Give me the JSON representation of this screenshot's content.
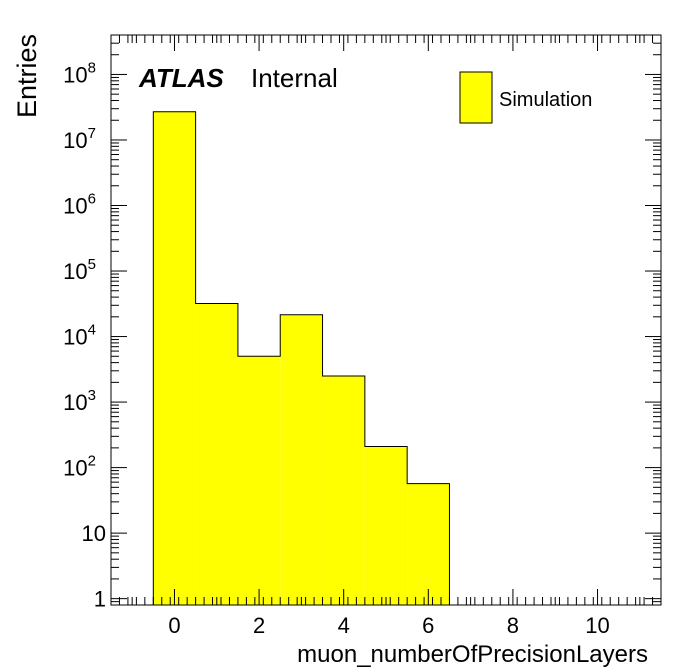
{
  "chart_data": {
    "type": "bar",
    "histogram": true,
    "xlabel": "muon_numberOfPrecisionLayers",
    "ylabel": "Entries",
    "xlim": [
      -1.5,
      11.5
    ],
    "ylim": [
      0.8,
      400000000
    ],
    "yscale": "log",
    "grid": false,
    "legend_position": "top-right",
    "bar_color": "#ffff00",
    "x_ticks": [
      0,
      2,
      4,
      6,
      8,
      10
    ],
    "x_tick_labels": [
      "0",
      "2",
      "4",
      "6",
      "8",
      "10"
    ],
    "y_ticks": [
      1,
      10,
      100,
      1000,
      10000,
      100000,
      1000000,
      10000000,
      100000000
    ],
    "y_tick_labels": [
      {
        "base": "1",
        "exp": ""
      },
      {
        "base": "10",
        "exp": ""
      },
      {
        "base": "10",
        "exp": "2"
      },
      {
        "base": "10",
        "exp": "3"
      },
      {
        "base": "10",
        "exp": "4"
      },
      {
        "base": "10",
        "exp": "5"
      },
      {
        "base": "10",
        "exp": "6"
      },
      {
        "base": "10",
        "exp": "7"
      },
      {
        "base": "10",
        "exp": "8"
      }
    ],
    "bins": [
      {
        "low": -0.5,
        "high": 0.5,
        "value": 27000000
      },
      {
        "low": 0.5,
        "high": 1.5,
        "value": 32000
      },
      {
        "low": 1.5,
        "high": 2.5,
        "value": 5000
      },
      {
        "low": 2.5,
        "high": 3.5,
        "value": 21500
      },
      {
        "low": 3.5,
        "high": 4.5,
        "value": 2500
      },
      {
        "low": 4.5,
        "high": 5.5,
        "value": 210
      },
      {
        "low": 5.5,
        "high": 6.5,
        "value": 57
      }
    ],
    "series": [
      {
        "name": "Simulation"
      }
    ],
    "annotation": {
      "experiment": "ATLAS",
      "status": "Internal"
    }
  }
}
